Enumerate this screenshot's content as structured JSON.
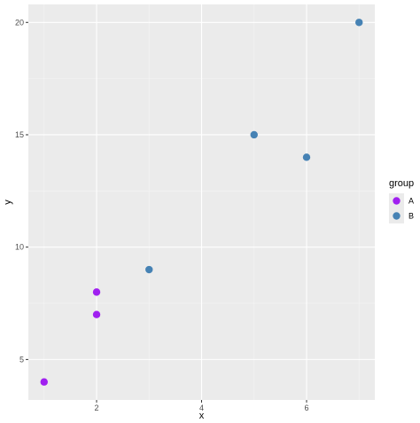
{
  "chart_data": {
    "type": "scatter",
    "xlabel": "x",
    "ylabel": "y",
    "xlim": [
      0.7,
      7.3
    ],
    "ylim": [
      3.2,
      20.8
    ],
    "x_ticks": [
      2,
      4,
      6
    ],
    "y_ticks": [
      5,
      10,
      15,
      20
    ],
    "grid": true,
    "legend": {
      "title": "group",
      "placement": "right"
    },
    "series": [
      {
        "name": "A",
        "color": "#a020f0",
        "points": [
          {
            "x": 1,
            "y": 4
          },
          {
            "x": 2,
            "y": 7
          },
          {
            "x": 2,
            "y": 8
          }
        ]
      },
      {
        "name": "B",
        "color": "#4682b4",
        "points": [
          {
            "x": 3,
            "y": 9
          },
          {
            "x": 5,
            "y": 15
          },
          {
            "x": 6,
            "y": 14
          },
          {
            "x": 7,
            "y": 20
          }
        ]
      }
    ]
  }
}
